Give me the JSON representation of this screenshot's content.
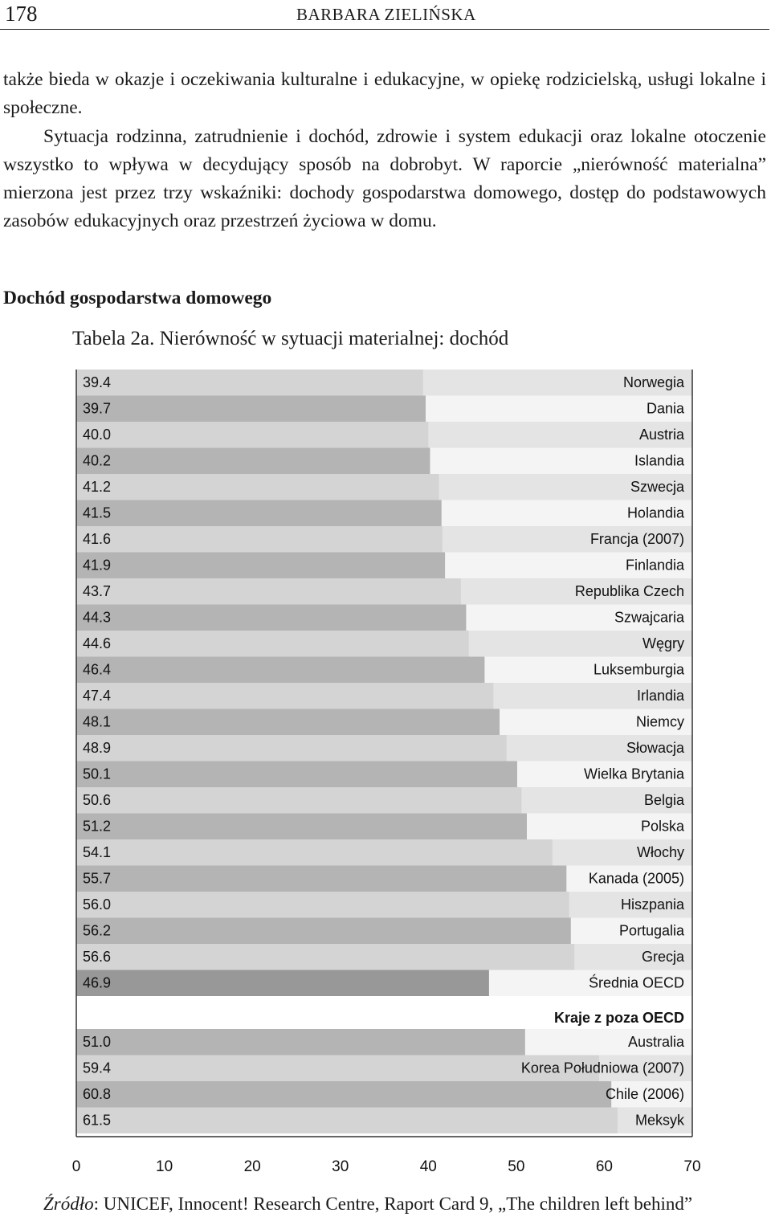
{
  "header": {
    "page_number": "178",
    "author": "BARBARA ZIELIŃSKA"
  },
  "body": {
    "paragraph_1": "także bieda w okazje i oczekiwania kulturalne i edukacyjne, w opiekę rodzicielską, usługi lokalne i społeczne.",
    "paragraph_2": "Sytuacja rodzinna, zatrudnienie i dochód, zdrowie i system edukacji oraz lokalne otoczenie wszystko to wpływa w decydujący sposób na dobrobyt. W raporcie „nierówność materialna” mierzona jest przez trzy wskaźniki: dochody gospodarstwa domowego, dostęp do podstawowych zasobów edukacyjnych oraz przestrzeń życiowa w domu."
  },
  "section_heading": "Dochód gospodarstwa domowego",
  "table_caption": "Tabela 2a. Nierówność w sytuacji materialnej: dochód",
  "chart_data": {
    "type": "bar",
    "orientation": "horizontal",
    "xlim": [
      0,
      70
    ],
    "x_ticks": [
      "0",
      "10",
      "20",
      "30",
      "40",
      "50",
      "60",
      "70"
    ],
    "oecd_rows": [
      {
        "country": "Norwegia",
        "value": 39.4,
        "label": "39.4"
      },
      {
        "country": "Dania",
        "value": 39.7,
        "label": "39.7"
      },
      {
        "country": "Austria",
        "value": 40.0,
        "label": "40.0"
      },
      {
        "country": "Islandia",
        "value": 40.2,
        "label": "40.2"
      },
      {
        "country": "Szwecja",
        "value": 41.2,
        "label": "41.2"
      },
      {
        "country": "Holandia",
        "value": 41.5,
        "label": "41.5"
      },
      {
        "country": "Francja (2007)",
        "value": 41.6,
        "label": "41.6"
      },
      {
        "country": "Finlandia",
        "value": 41.9,
        "label": "41.9"
      },
      {
        "country": "Republika Czech",
        "value": 43.7,
        "label": "43.7"
      },
      {
        "country": "Szwajcaria",
        "value": 44.3,
        "label": "44.3"
      },
      {
        "country": "Węgry",
        "value": 44.6,
        "label": "44.6"
      },
      {
        "country": "Luksemburgia",
        "value": 46.4,
        "label": "46.4"
      },
      {
        "country": "Irlandia",
        "value": 47.4,
        "label": "47.4"
      },
      {
        "country": "Niemcy",
        "value": 48.1,
        "label": "48.1"
      },
      {
        "country": "Słowacja",
        "value": 48.9,
        "label": "48.9"
      },
      {
        "country": "Wielka Brytania",
        "value": 50.1,
        "label": "50.1"
      },
      {
        "country": "Belgia",
        "value": 50.6,
        "label": "50.6"
      },
      {
        "country": "Polska",
        "value": 51.2,
        "label": "51.2"
      },
      {
        "country": "Włochy",
        "value": 54.1,
        "label": "54.1"
      },
      {
        "country": "Kanada (2005)",
        "value": 55.7,
        "label": "55.7"
      },
      {
        "country": "Hiszpania",
        "value": 56.0,
        "label": "56.0"
      },
      {
        "country": "Portugalia",
        "value": 56.2,
        "label": "56.2"
      },
      {
        "country": "Grecja",
        "value": 56.6,
        "label": "56.6"
      }
    ],
    "average_row": {
      "country": "Średnia OECD",
      "value": 46.9,
      "label": "46.9"
    },
    "non_oecd_heading": "Kraje z poza OECD",
    "non_oecd_rows": [
      {
        "country": "Australia",
        "value": 51.0,
        "label": "51.0"
      },
      {
        "country": "Korea Południowa (2007)",
        "value": 59.4,
        "label": "59.4"
      },
      {
        "country": "Chile (2006)",
        "value": 60.8,
        "label": "60.8"
      },
      {
        "country": "Meksyk",
        "value": 61.5,
        "label": "61.5"
      }
    ],
    "colors": {
      "bar_dark": "#b4b4b4",
      "bar_light": "#d4d4d4",
      "bar_average": "#989898",
      "bg_dark": "#e4e4e4",
      "bg_light": "#f4f4f4",
      "axis": "#333333",
      "text": "#111111"
    }
  },
  "source_note": {
    "label": "Źródło",
    "text": ": UNICEF, Innocent! Research Centre, Raport Card 9, „The children left behind”"
  }
}
